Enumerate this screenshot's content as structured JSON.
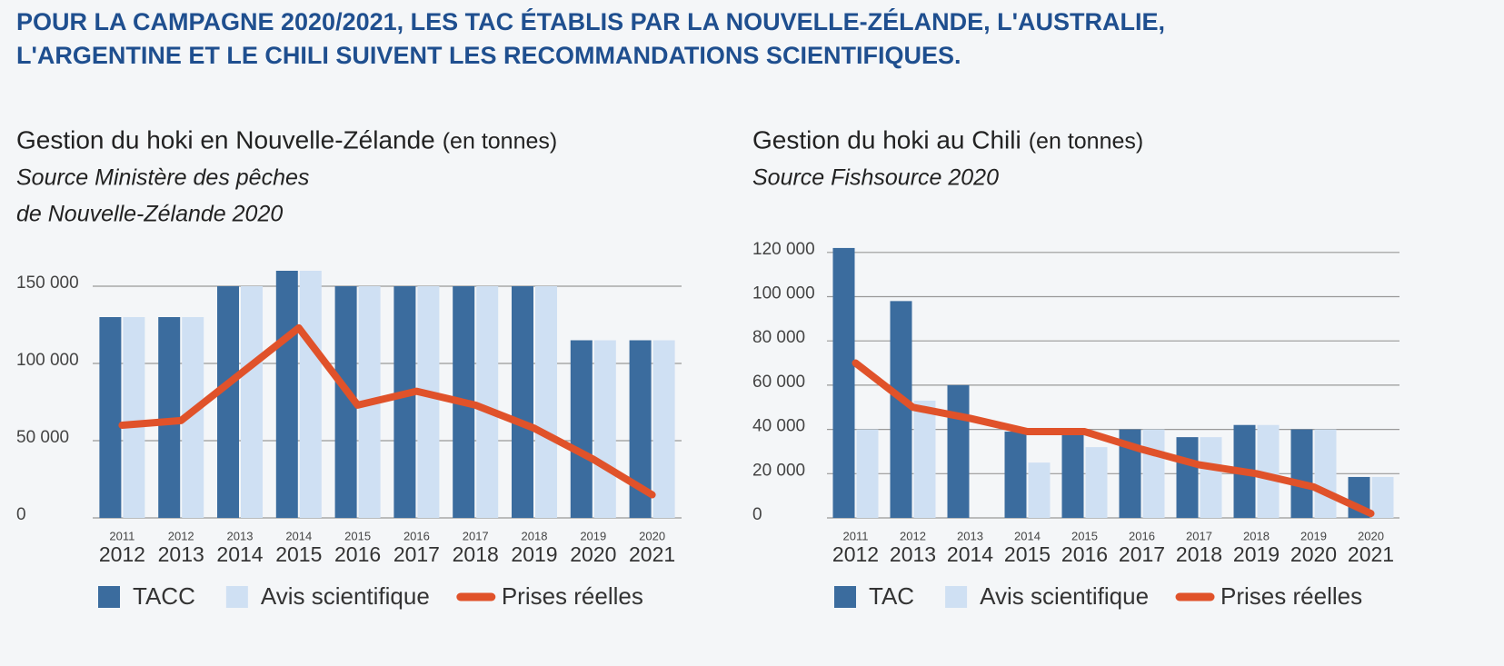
{
  "headline": [
    "POUR LA CAMPAGNE 2020/2021, LES TAC ÉTABLIS PAR LA NOUVELLE-ZÉLANDE, L'AUSTRALIE,",
    "L'ARGENTINE ET LE CHILI SUIVENT LES RECOMMANDATIONS SCIENTIFIQUES."
  ],
  "chart_data": [
    {
      "type": "bar",
      "title": "Gestion du hoki en Nouvelle-Zélande",
      "title_unit": "(en tonnes)",
      "subtitle": [
        "Source Ministère des pêches",
        "de Nouvelle-Zélande 2020"
      ],
      "categories": [
        "2012",
        "2013",
        "2014",
        "2015",
        "2016",
        "2017",
        "2018",
        "2019",
        "2020",
        "2021"
      ],
      "category_sublabels": [
        "2011",
        "2012",
        "2013",
        "2014",
        "2015",
        "2016",
        "2017",
        "2018",
        "2019",
        "2020"
      ],
      "ylim": [
        0,
        160000
      ],
      "yticks": [
        0,
        {
          "value": 50000,
          "label": "50 000"
        },
        {
          "value": 100000,
          "label": "100 000"
        },
        {
          "value": 150000,
          "label": "150 000"
        }
      ],
      "grid": true,
      "series": [
        {
          "name": "TACC",
          "type": "bar",
          "color": "#3b6c9e",
          "values": [
            130000,
            130000,
            150000,
            160000,
            150000,
            150000,
            150000,
            150000,
            115000,
            115000
          ]
        },
        {
          "name": "Avis scientifique",
          "type": "bar",
          "color": "#cfe0f3",
          "values": [
            130000,
            130000,
            150000,
            160000,
            150000,
            150000,
            150000,
            150000,
            115000,
            115000
          ]
        },
        {
          "name": "Prises réelles",
          "type": "line",
          "color": "#e0522a",
          "values": [
            60000,
            63000,
            93000,
            123000,
            73000,
            82000,
            73000,
            58000,
            38000,
            15000
          ]
        }
      ]
    },
    {
      "type": "bar",
      "title": "Gestion du hoki au Chili",
      "title_unit": "(en tonnes)",
      "subtitle": [
        "Source Fishsource 2020"
      ],
      "categories": [
        "2012",
        "2013",
        "2014",
        "2015",
        "2016",
        "2017",
        "2018",
        "2019",
        "2020",
        "2021"
      ],
      "category_sublabels": [
        "2011",
        "2012",
        "2013",
        "2014",
        "2015",
        "2016",
        "2017",
        "2018",
        "2019",
        "2020"
      ],
      "ylim": [
        0,
        125000
      ],
      "yticks": [
        0,
        {
          "value": 20000,
          "label": "20 000"
        },
        {
          "value": 40000,
          "label": "40 000"
        },
        {
          "value": 60000,
          "label": "60 000"
        },
        {
          "value": 80000,
          "label": "80 000"
        },
        {
          "value": 100000,
          "label": "100 000"
        },
        {
          "value": 120000,
          "label": "120 000"
        }
      ],
      "grid": true,
      "series": [
        {
          "name": "TAC",
          "type": "bar",
          "color": "#3b6c9e",
          "values": [
            122000,
            98000,
            60000,
            39000,
            39000,
            40000,
            36500,
            42000,
            40000,
            18500
          ]
        },
        {
          "name": "Avis scientifique",
          "type": "bar",
          "color": "#cfe0f3",
          "values": [
            40000,
            53000,
            null,
            25000,
            32000,
            40000,
            36500,
            42000,
            40000,
            18500
          ]
        },
        {
          "name": "Prises réelles",
          "type": "line",
          "color": "#e0522a",
          "values": [
            70000,
            50000,
            45000,
            39000,
            39000,
            31000,
            24000,
            20000,
            14000,
            2000
          ]
        }
      ]
    }
  ]
}
